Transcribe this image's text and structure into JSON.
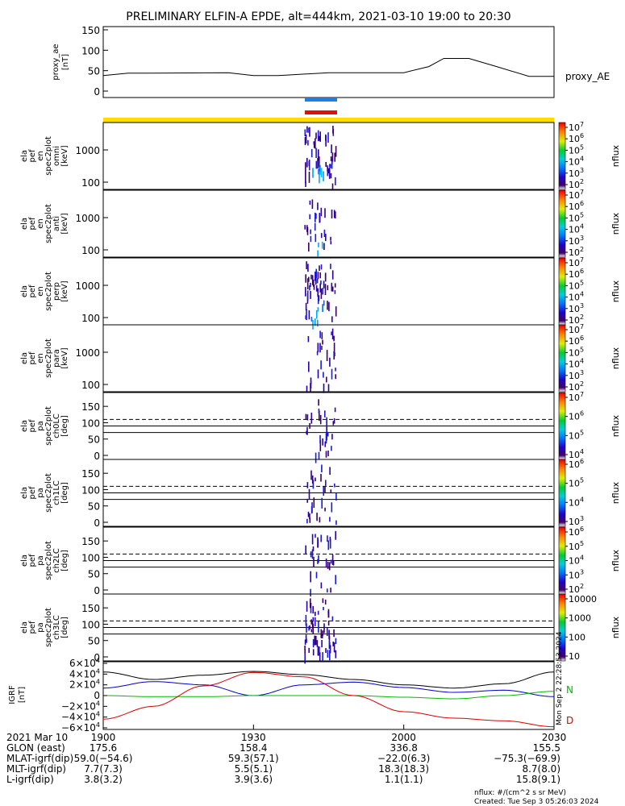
{
  "title": "PRELIMINARY ELFIN-A EPDE, alt=444km, 2021-03-10 19:00 to 20:30",
  "chart_data": [
    {
      "name": "proxy_ae",
      "type": "line",
      "ylabel": "proxy_ae",
      "yunit": "[nT]",
      "legend": "proxy_AE",
      "ylim": [
        0,
        150
      ],
      "yticks": [
        "150",
        "100",
        "50",
        "0"
      ],
      "x_minutes": [
        0,
        5,
        10,
        25,
        30,
        35,
        45,
        50,
        55,
        60,
        65,
        68,
        70,
        73,
        78,
        85,
        88,
        90
      ],
      "values": [
        38,
        44,
        44,
        45,
        38,
        38,
        45,
        45,
        45,
        45,
        60,
        80,
        80,
        80,
        62,
        36,
        36,
        36
      ]
    },
    {
      "name": "omni",
      "type": "heatmap",
      "ylabel": [
        "ela",
        "pef",
        "en",
        "spec2plot",
        "omni"
      ],
      "yunit": "[keV]",
      "yscale": "log",
      "yticks": [
        "1000",
        "100"
      ],
      "colorbar": {
        "label": "nflux",
        "ticks": [
          "10^7",
          "10^6",
          "10^5",
          "10^4",
          "10^3",
          "10^2"
        ]
      }
    },
    {
      "name": "anti",
      "type": "heatmap",
      "ylabel": [
        "ela",
        "pef",
        "en",
        "spec2plot",
        "anti"
      ],
      "yunit": "[keV]",
      "yscale": "log",
      "yticks": [
        "1000",
        "100"
      ],
      "colorbar": {
        "label": "nflux",
        "ticks": [
          "10^7",
          "10^6",
          "10^5",
          "10^4",
          "10^3",
          "10^2"
        ]
      }
    },
    {
      "name": "perp",
      "type": "heatmap",
      "ylabel": [
        "ela",
        "pef",
        "en",
        "spec2plot",
        "perp"
      ],
      "yunit": "[keV]",
      "yscale": "log",
      "yticks": [
        "1000",
        "100"
      ],
      "colorbar": {
        "label": "nflux",
        "ticks": [
          "10^7",
          "10^6",
          "10^5",
          "10^4",
          "10^3",
          "10^2"
        ]
      }
    },
    {
      "name": "para",
      "type": "heatmap",
      "ylabel": [
        "ela",
        "pef",
        "en",
        "spec2plot",
        "para"
      ],
      "yunit": "[keV]",
      "yscale": "log",
      "yticks": [
        "1000",
        "100"
      ],
      "colorbar": {
        "label": "nflux",
        "ticks": [
          "10^7",
          "10^6",
          "10^5",
          "10^4",
          "10^3",
          "10^2"
        ]
      }
    },
    {
      "name": "ch0LC",
      "type": "heatmap",
      "ylabel": [
        "ela",
        "pef",
        "pa",
        "spec2plot",
        "ch0LC"
      ],
      "yunit": "[deg]",
      "ylim": [
        0,
        180
      ],
      "yticks": [
        "150",
        "100",
        "50",
        "0"
      ],
      "colorbar": {
        "label": "nflux",
        "ticks": [
          "10^7",
          "10^6",
          "10^5",
          "10^4"
        ]
      }
    },
    {
      "name": "ch1LC",
      "type": "heatmap",
      "ylabel": [
        "ela",
        "pef",
        "pa",
        "spec2plot",
        "ch1LC"
      ],
      "yunit": "[deg]",
      "ylim": [
        0,
        180
      ],
      "yticks": [
        "150",
        "100",
        "50",
        "0"
      ],
      "colorbar": {
        "label": "nflux",
        "ticks": [
          "10^6",
          "10^5",
          "10^4",
          "10^3"
        ]
      }
    },
    {
      "name": "ch2LC",
      "type": "heatmap",
      "ylabel": [
        "ela",
        "pef",
        "pa",
        "spec2plot",
        "ch2LC"
      ],
      "yunit": "[deg]",
      "ylim": [
        0,
        180
      ],
      "yticks": [
        "150",
        "100",
        "50",
        "0"
      ],
      "colorbar": {
        "label": "nflux",
        "ticks": [
          "10^6",
          "10^5",
          "10^4",
          "10^3",
          "10^2"
        ]
      }
    },
    {
      "name": "ch3LC",
      "type": "heatmap",
      "ylabel": [
        "ela",
        "pef",
        "pa",
        "spec2plot",
        "ch3LC"
      ],
      "yunit": "[deg]",
      "ylim": [
        0,
        180
      ],
      "yticks": [
        "150",
        "100",
        "50",
        "0"
      ],
      "colorbar": {
        "label": "nflux",
        "ticks": [
          "10000",
          "1000",
          "100",
          "10"
        ]
      }
    },
    {
      "name": "IGRF",
      "type": "line",
      "ylabel": "IGRF",
      "yunit": "[nT]",
      "ylim": [
        -60000,
        60000
      ],
      "yticks": [
        "6×10^4",
        "4×10^4",
        "2×10^4",
        "0",
        "−2×10^4",
        "−4×10^4",
        "−6×10^4"
      ],
      "legend": [
        "N",
        "D"
      ],
      "series": [
        {
          "name": "",
          "color": "#000000",
          "x_minutes": [
            0,
            10,
            20,
            30,
            40,
            50,
            60,
            70,
            80,
            90
          ],
          "values": [
            44000,
            30000,
            38000,
            45000,
            39000,
            30000,
            20000,
            14000,
            22000,
            44000
          ]
        },
        {
          "name": "",
          "color": "#0000cc",
          "x_minutes": [
            0,
            10,
            20,
            30,
            40,
            50,
            60,
            70,
            80,
            90
          ],
          "values": [
            14000,
            26000,
            20000,
            0,
            20000,
            25000,
            15000,
            6000,
            10000,
            -2000
          ]
        },
        {
          "name": "N",
          "color": "#00bb00",
          "x_minutes": [
            0,
            10,
            20,
            30,
            40,
            50,
            60,
            70,
            80,
            90
          ],
          "values": [
            0,
            -2000,
            -2000,
            0,
            0,
            0,
            -3000,
            -6000,
            0,
            8000
          ]
        },
        {
          "name": "D",
          "color": "#dd0000",
          "x_minutes": [
            0,
            10,
            20,
            30,
            40,
            50,
            60,
            70,
            80,
            90
          ],
          "values": [
            -44000,
            -20000,
            18000,
            43000,
            35000,
            0,
            -30000,
            -42000,
            -47000,
            -58000
          ]
        }
      ]
    }
  ],
  "time_axis": {
    "date_label": "2021 Mar 10",
    "ticks": [
      "1900",
      "1930",
      "2000",
      "2030"
    ],
    "tick_minutes": [
      0,
      30,
      60,
      90
    ]
  },
  "orbit_table": {
    "rows": [
      {
        "label": "GLON (east)",
        "values": [
          "175.6",
          "158.4",
          "336.8",
          "155.5"
        ]
      },
      {
        "label": "MLAT-igrf(dip)",
        "values": [
          "59.0(−54.6)",
          "59.3(57.1)",
          "−22.0(6.3)",
          "−75.3(−69.9)"
        ]
      },
      {
        "label": "MLT-igrf(dip)",
        "values": [
          "7.7(7.3)",
          "5.5(5.1)",
          "18.3(18.3)",
          "8.7(8.0)"
        ]
      },
      {
        "label": "L-igrf(dip)",
        "values": [
          "3.8(3.2)",
          "3.9(3.6)",
          "1.1(1.1)",
          "15.8(9.1)"
        ]
      }
    ]
  },
  "footer": {
    "units": "nflux: #/(cm^2 s sr MeV)",
    "created": "Created: Tue Sep  3 05:26:03 2024"
  },
  "side_stamp": "Mon Sep  2 22:28:53 2024",
  "colors": {
    "science_bar": "#ffdd00",
    "sci_zone_blue": "#1a7fe6",
    "sci_zone_red": "#dd1111"
  }
}
